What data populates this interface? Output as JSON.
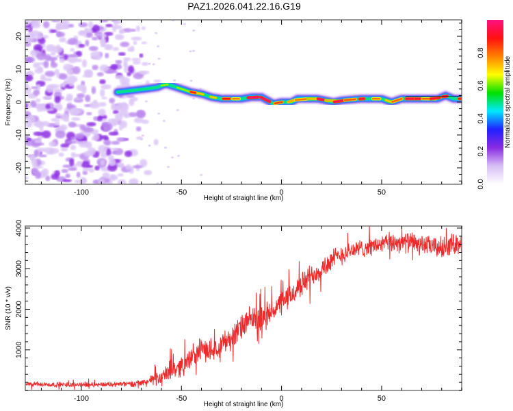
{
  "title": "PAZ1.2026.041.22.16.G19",
  "chart_data": [
    {
      "type": "heatmap",
      "name": "spectrogram",
      "title": "PAZ1.2026.041.22.16.G19",
      "xlabel": "Height of straight line (km)",
      "ylabel": "Frequency (Hz)",
      "xlim": [
        -128,
        90
      ],
      "ylim": [
        -25,
        25
      ],
      "xticks": [
        -100,
        -50,
        0,
        50
      ],
      "xtick_labels": [
        "-100",
        "-50",
        "0",
        "50"
      ],
      "xminor_step": 10,
      "yticks": [
        -20,
        -10,
        0,
        10,
        20
      ],
      "ytick_labels": [
        "-20",
        "-10",
        "0",
        "10",
        "20"
      ],
      "yminor_step": 2,
      "noise_region_x": [
        -128,
        -68
      ],
      "ridge": {
        "start_x": -82,
        "points": [
          [
            -82,
            3.0
          ],
          [
            -75,
            3.5
          ],
          [
            -68,
            4.0
          ],
          [
            -62,
            4.5
          ],
          [
            -58,
            5.5
          ],
          [
            -55,
            5.0
          ],
          [
            -50,
            4.0
          ],
          [
            -45,
            3.0
          ],
          [
            -40,
            2.5
          ],
          [
            -35,
            1.5
          ],
          [
            -30,
            1.0
          ],
          [
            -25,
            1.0
          ],
          [
            -20,
            1.0
          ],
          [
            -15,
            1.5
          ],
          [
            -10,
            1.5
          ],
          [
            -7,
            0.5
          ],
          [
            -4,
            -0.5
          ],
          [
            0,
            0.0
          ],
          [
            5,
            0.0
          ],
          [
            8,
            1.0
          ],
          [
            12,
            1.0
          ],
          [
            18,
            1.0
          ],
          [
            22,
            0.5
          ],
          [
            26,
            0.0
          ],
          [
            30,
            0.5
          ],
          [
            40,
            1.0
          ],
          [
            50,
            1.0
          ],
          [
            55,
            0.0
          ],
          [
            60,
            1.0
          ],
          [
            70,
            1.0
          ],
          [
            78,
            1.0
          ],
          [
            82,
            2.0
          ],
          [
            86,
            1.0
          ],
          [
            90,
            1.0
          ]
        ]
      },
      "colorbar": {
        "label": "Normalized spectral amplitude",
        "range": [
          0.0,
          1.0
        ],
        "ticks": [
          0.0,
          0.2,
          0.4,
          0.6,
          0.8
        ],
        "tick_labels": [
          "0.0",
          "0.2",
          "0.4",
          "0.6",
          "0.8"
        ],
        "colormap": [
          "#ffffff",
          "#d7bff5",
          "#8a2be2",
          "#2020ff",
          "#00e8ff",
          "#00e000",
          "#ffff00",
          "#ff8000",
          "#ff1010",
          "#ff1080"
        ]
      }
    },
    {
      "type": "line",
      "name": "snr",
      "xlabel": "Height of straight line (km)",
      "ylabel": "SNR (10 * v/v)",
      "xlim": [
        -128,
        90
      ],
      "ylim": [
        0,
        4050
      ],
      "xticks": [
        -100,
        -50,
        0,
        50
      ],
      "xtick_labels": [
        "-100",
        "-50",
        "0",
        "50"
      ],
      "xminor_step": 10,
      "yticks": [
        1000,
        2000,
        3000,
        4000
      ],
      "ytick_labels": [
        "1000",
        "2000",
        "3000",
        "4000"
      ],
      "yminor_step": 200,
      "color": "#ee2a2a",
      "series": [
        {
          "name": "SNR",
          "trend_x": [
            -128,
            -110,
            -90,
            -75,
            -68,
            -60,
            -55,
            -50,
            -45,
            -40,
            -35,
            -30,
            -25,
            -20,
            -15,
            -10,
            -5,
            0,
            5,
            10,
            15,
            20,
            25,
            30,
            35,
            40,
            45,
            50,
            55,
            60,
            65,
            70,
            75,
            80,
            85,
            90
          ],
          "trend_y": [
            150,
            140,
            150,
            160,
            200,
            330,
            500,
            600,
            800,
            1000,
            1000,
            1150,
            1300,
            1550,
            1750,
            1750,
            1950,
            2150,
            2350,
            2600,
            2850,
            3000,
            3200,
            3350,
            3450,
            3500,
            3550,
            3600,
            3650,
            3650,
            3650,
            3600,
            3550,
            3500,
            3600,
            3650
          ],
          "noise_amplitude_y": [
            60,
            60,
            60,
            70,
            100,
            180,
            250,
            260,
            250,
            260,
            280,
            290,
            300,
            320,
            330,
            320,
            300,
            300,
            300,
            300,
            290,
            280,
            270,
            250,
            230,
            220,
            220,
            230,
            240,
            250,
            250,
            240,
            240,
            280,
            260,
            260
          ]
        }
      ]
    }
  ]
}
